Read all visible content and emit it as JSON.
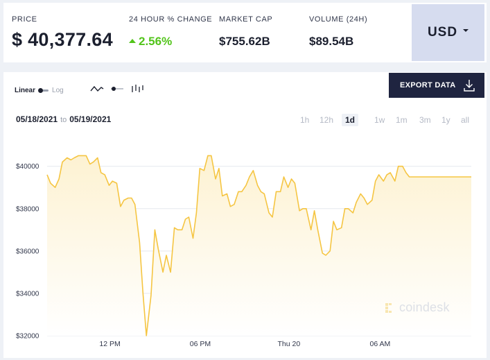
{
  "stats": {
    "price": {
      "label": "PRICE",
      "value": "$ 40,377.64"
    },
    "change": {
      "label": "24 HOUR % CHANGE",
      "value": "2.56%"
    },
    "market_cap": {
      "label": "MARKET CAP",
      "value": "$755.62B"
    },
    "volume": {
      "label": "VOLUME (24H)",
      "value": "$89.54B"
    }
  },
  "currency": {
    "label": "USD"
  },
  "toolbar": {
    "scale_linear": "Linear",
    "scale_log": "Log",
    "scale_selected": "Linear",
    "chart_type_icons": [
      "line-chart-icon",
      "ohlc-toggle-icon",
      "candlestick-icon"
    ],
    "export_label": "EXPORT DATA",
    "export_icon": "download-icon"
  },
  "date_range": {
    "start": "05/18/2021",
    "to": "to",
    "end": "05/19/2021"
  },
  "ranges": [
    {
      "label": "1h",
      "active": false
    },
    {
      "label": "12h",
      "active": false
    },
    {
      "label": "1d",
      "active": true
    },
    {
      "label": "1w",
      "active": false
    },
    {
      "label": "1m",
      "active": false
    },
    {
      "label": "3m",
      "active": false
    },
    {
      "label": "1y",
      "active": false
    },
    {
      "label": "all",
      "active": false
    }
  ],
  "watermark": {
    "text": "coindesk"
  },
  "colors": {
    "line": "#f5c542",
    "fill_top": "#fdf2d2",
    "fill_bottom": "#ffffff",
    "positive": "#52c41a",
    "export_bg": "#1f2440",
    "currency_bg": "#d6dcef"
  },
  "chart_data": {
    "type": "area",
    "title": "",
    "xlabel": "",
    "ylabel": "",
    "ylim": [
      32000,
      41300
    ],
    "yticks": [
      32000,
      34000,
      36000,
      38000,
      40000
    ],
    "ytick_labels": [
      "$32000",
      "$34000",
      "$36000",
      "$38000",
      "$40000"
    ],
    "xlim": [
      0,
      1
    ],
    "xticks": [
      {
        "label": "12 PM",
        "pos": 0.148
      },
      {
        "label": "06 PM",
        "pos": 0.361
      },
      {
        "label": "Thu 20",
        "pos": 0.57
      },
      {
        "label": "06 AM",
        "pos": 0.785
      }
    ],
    "grid": true,
    "series": [
      {
        "x": [
          0,
          0.008,
          0.019,
          0.028,
          0.036,
          0.047,
          0.056,
          0.064,
          0.074,
          0.082,
          0.092,
          0.101,
          0.109,
          0.119,
          0.127,
          0.136,
          0.146,
          0.154,
          0.164,
          0.173,
          0.181,
          0.191,
          0.199,
          0.207,
          0.218,
          0.226,
          0.234,
          0.245,
          0.254,
          0.262,
          0.273,
          0.281,
          0.291,
          0.3,
          0.308,
          0.318,
          0.326,
          0.334,
          0.344,
          0.352,
          0.36,
          0.37,
          0.379,
          0.387,
          0.397,
          0.405,
          0.413,
          0.424,
          0.432,
          0.441,
          0.451,
          0.459,
          0.469,
          0.477,
          0.486,
          0.496,
          0.504,
          0.512,
          0.523,
          0.531,
          0.54,
          0.55,
          0.558,
          0.568,
          0.576,
          0.584,
          0.595,
          0.603,
          0.611,
          0.622,
          0.63,
          0.638,
          0.649,
          0.657,
          0.667,
          0.675,
          0.683,
          0.694,
          0.702,
          0.71,
          0.721,
          0.729,
          0.739,
          0.747,
          0.755,
          0.766,
          0.774,
          0.782,
          0.793,
          0.801,
          0.809,
          0.82,
          0.828,
          0.838,
          0.846,
          0.854,
          0.865,
          0.873,
          0.881,
          0.892,
          0.9,
          0.909,
          0.919,
          0.927,
          0.937,
          0.945,
          0.953,
          0.964,
          0.972,
          0.98,
          0.991,
          1.0
        ],
        "y": [
          39600,
          39200,
          39000,
          39400,
          40200,
          40400,
          40300,
          40400,
          40500,
          40500,
          40500,
          40100,
          40200,
          40400,
          39700,
          39600,
          39100,
          39300,
          39200,
          38100,
          38400,
          38500,
          38500,
          38200,
          36400,
          34000,
          32000,
          33900,
          37000,
          36100,
          35000,
          35800,
          35000,
          37100,
          37000,
          37000,
          37500,
          37600,
          36600,
          37800,
          39900,
          39800,
          40500,
          40500,
          39400,
          39900,
          38600,
          38700,
          38100,
          38200,
          38800,
          38800,
          39100,
          39500,
          39800,
          39100,
          38800,
          38700,
          37800,
          37600,
          38800,
          38800,
          39500,
          39000,
          39400,
          39200,
          37900,
          38000,
          38000,
          37000,
          37900,
          37000,
          35900,
          35800,
          36000,
          37400,
          37000,
          37100,
          38000,
          38000,
          37800,
          38300,
          38700,
          38500,
          38200,
          38400,
          39300,
          39600,
          39300,
          39600,
          39700,
          39300,
          40000,
          40000,
          39700,
          39500,
          39500,
          39500,
          39500,
          39500,
          39500,
          39500,
          39500,
          39500,
          39500,
          39500,
          39500,
          39500,
          39500,
          39500,
          39500,
          39500
        ]
      }
    ]
  }
}
